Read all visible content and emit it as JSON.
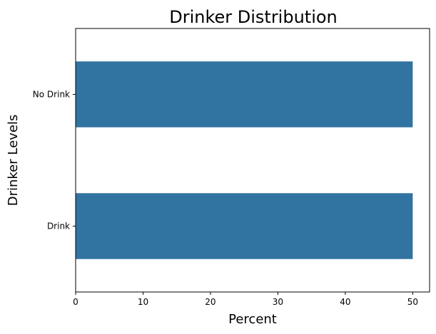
{
  "chart_data": {
    "type": "bar",
    "orientation": "horizontal",
    "title": "Drinker Distribution",
    "xlabel": "Percent",
    "ylabel": "Drinker Levels",
    "categories": [
      "No Drink",
      "Drink"
    ],
    "values": [
      50,
      50
    ],
    "xlim": [
      0,
      52.5
    ],
    "xticks": [
      0,
      10,
      20,
      30,
      40,
      50
    ],
    "grid": false,
    "colors": {
      "bar": "#3274a1",
      "axis": "#000000"
    }
  }
}
